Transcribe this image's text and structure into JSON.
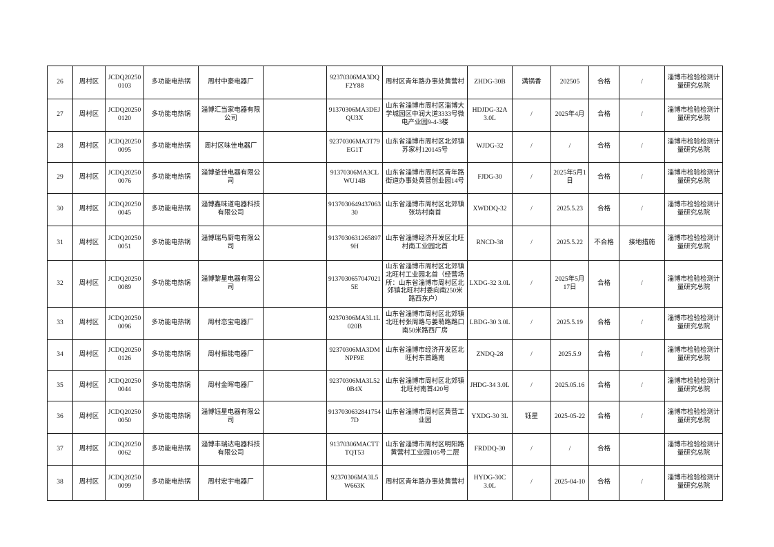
{
  "page": {
    "background_color": "#ffffff",
    "text_color": "#111111",
    "border_color": "#1a1a1a"
  },
  "table": {
    "rows": [
      {
        "cells": [
          "26",
          "周村区",
          "JCDQ202500103",
          "多功能电热锅",
          "周村中豪电器厂",
          "",
          "92370306MA3DQF2Y88",
          "周村区青年路办事处黄营村",
          "ZHDG-30B",
          "满锅香",
          "202505",
          "合格",
          "/",
          "淄博市检验检测计量研究总院"
        ]
      },
      {
        "cells": [
          "27",
          "周村区",
          "JCDQ202500120",
          "多功能电热锅",
          "淄博汇当家电器有限公司",
          "",
          "91370306MA3DEJQU3X",
          "山东省淄博市周村区淄博大学城园区中润大道3333号微电产业园9-4-3楼",
          "HDJDG-32A 3.0L",
          "/",
          "2025年4月",
          "合格",
          "/",
          "淄博市检验检测计量研究总院"
        ]
      },
      {
        "cells": [
          "28",
          "周村区",
          "JCDQ202500095",
          "多功能电热锅",
          "周村区味佳电器厂",
          "",
          "92370306MA3T79EG1T",
          "山东省淄博市周村区北郊镇苏家村120145号",
          "WJDG-32",
          "/",
          "/",
          "合格",
          "/",
          "淄博市检验检测计量研究总院"
        ]
      },
      {
        "cells": [
          "29",
          "周村区",
          "JCDQ202500076",
          "多功能电热锅",
          "淄博釜佳电器有限公司",
          "",
          "91370306MA3CLWU14B",
          "山东省淄博市周村区青年路街道办事处黄营创业园14号",
          "FJDG-30",
          "/",
          "2025年5月1日",
          "合格",
          "/",
          "淄博市检验检测计量研究总院"
        ]
      },
      {
        "cells": [
          "30",
          "周村区",
          "JCDQ202500045",
          "多功能电热锅",
          "淄博鑫味道电器科技有限公司",
          "",
          "913703064943706330",
          "山东省淄博市周村区北郊镇张坊村南首",
          "XWDDQ-32",
          "/",
          "2025.5.23",
          "合格",
          "/",
          "淄博市检验检测计量研究总院"
        ]
      },
      {
        "cells": [
          "31",
          "周村区",
          "JCDQ202500051",
          "多功能电热锅",
          "淄博瑞鸟厨电有限公司",
          "",
          "91370306312658979H",
          "山东省淄博经济开发区北旺村南工业园北首",
          "RNCD-38",
          "/",
          "2025.5.22",
          "不合格",
          "接地措施",
          "淄博市检验检测计量研究总院"
        ]
      },
      {
        "cells": [
          "32",
          "周村区",
          "JCDQ202500089",
          "多功能电热锅",
          "淄博黎星电器有限公司",
          "",
          "91370306570470215E",
          "山东省淄博市周村区北郊镇北旺村工业园北首（经营场所：山东省淄博市周村区北郊镇北旺村村委向南250米路西东户）",
          "LXDG-32 3.0L",
          "/",
          "2025年5月17日",
          "合格",
          "/",
          "淄博市检验检测计量研究总院"
        ]
      },
      {
        "cells": [
          "33",
          "周村区",
          "JCDQ202500096",
          "多功能电热锅",
          "周村恋宝电器厂",
          "",
          "92370306MA3L1L020B",
          "山东省淄博市周村区北郊镇北旺村张周路与姜萌路路口南50米路西厂房",
          "LBDG-30 3.0L",
          "/",
          "2025.5.19",
          "合格",
          "/",
          "淄博市检验检测计量研究总院"
        ]
      },
      {
        "cells": [
          "34",
          "周村区",
          "JCDQ202500126",
          "多功能电热锅",
          "周村振能电器厂",
          "",
          "92370306MA3DMNPF9E",
          "山东省淄博市经济开发区北旺村东首路南",
          "ZNDQ-28",
          "/",
          "2025.5.9",
          "合格",
          "/",
          "淄博市检验检测计量研究总院"
        ]
      },
      {
        "cells": [
          "35",
          "周村区",
          "JCDQ202500044",
          "多功能电热锅",
          "周村金晖电器厂",
          "",
          "92370306MA3L520B4X",
          "山东省淄博市周村区北郊镇北旺村南首420号",
          "JHDG-34 3.0L",
          "/",
          "2025.05.16",
          "合格",
          "/",
          "淄博市检验检测计量研究总院"
        ]
      },
      {
        "cells": [
          "36",
          "周村区",
          "JCDQ202500050",
          "多功能电热锅",
          "淄博钰星电器有限公司",
          "",
          "91370306328417547D",
          "山东省淄博市周村区黄营工业园",
          "YXDG-30 3L",
          "钰星",
          "2025-05-22",
          "合格",
          "/",
          "淄博市检验检测计量研究总院"
        ]
      },
      {
        "cells": [
          "37",
          "周村区",
          "JCDQ202500062",
          "多功能电热锅",
          "淄博丰瑞达电器科技有限公司",
          "",
          "91370306MACTTTQT53",
          "山东省淄博市周村区明阳路黄营村工业园105号二层",
          "FRDDQ-30",
          "/",
          "/",
          "合格",
          "",
          "淄博市检验检测计量研究总院"
        ]
      },
      {
        "cells": [
          "38",
          "周村区",
          "JCDQ202500099",
          "多功能电热锅",
          "周村宏宇电器厂",
          "",
          "92370306MA3L5W663K",
          "周村区青年路办事处黄营村",
          "HYDG-30C 3.0L",
          "/",
          "2025-04-10",
          "合格",
          "/",
          "淄博市检验检测计量研究总院"
        ]
      }
    ]
  }
}
